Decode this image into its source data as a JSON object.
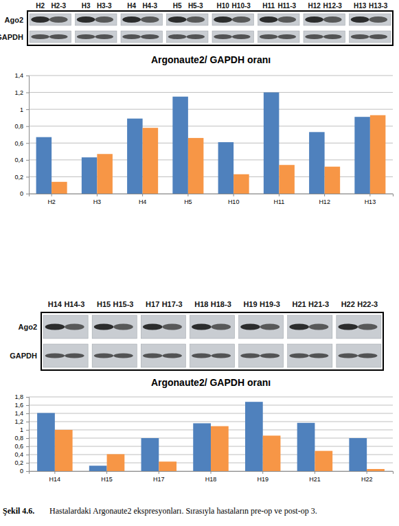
{
  "chart_data": [
    {
      "type": "bar",
      "title": "Argonaute2/ GAPDH oranı",
      "categories": [
        "H2",
        "H3",
        "H4",
        "H5",
        "H10",
        "H11",
        "H12",
        "H13"
      ],
      "series": [
        {
          "color": "#4f81bd",
          "values": [
            0.67,
            0.43,
            0.89,
            1.15,
            0.61,
            1.2,
            0.73,
            0.91
          ]
        },
        {
          "color": "#f79646",
          "values": [
            0.14,
            0.47,
            0.78,
            0.66,
            0.23,
            0.34,
            0.32,
            0.93
          ]
        }
      ],
      "ylim": [
        0,
        1.4
      ],
      "yticks": [
        0,
        {
          "value": 0.2,
          "label": "0,2"
        },
        {
          "value": 0.4,
          "label": "0,4"
        },
        {
          "value": 0.6,
          "label": "0,6"
        },
        {
          "value": 0.8,
          "label": "0,8"
        },
        1,
        {
          "value": 1.2,
          "label": "1,2"
        },
        {
          "value": 1.4,
          "label": "1,4"
        }
      ],
      "grid": true
    },
    {
      "type": "bar",
      "title": "Argonaute2/ GAPDH oranı",
      "categories": [
        "H14",
        "H15",
        "H17",
        "H18",
        "H19",
        "H21",
        "H22"
      ],
      "series": [
        {
          "color": "#4f81bd",
          "values": [
            1.41,
            0.13,
            0.8,
            1.16,
            1.68,
            1.17,
            0.8
          ]
        },
        {
          "color": "#f79646",
          "values": [
            1.0,
            0.41,
            0.23,
            1.09,
            0.86,
            0.49,
            0.05
          ]
        }
      ],
      "ylim": [
        0,
        1.8
      ],
      "yticks": [
        0,
        {
          "value": 0.2,
          "label": "0,2"
        },
        {
          "value": 0.4,
          "label": "0,4"
        },
        {
          "value": 0.6,
          "label": "0,6"
        },
        {
          "value": 0.8,
          "label": "0,8"
        },
        1,
        {
          "value": 1.2,
          "label": "1,2"
        },
        {
          "value": 1.4,
          "label": "1,4"
        },
        {
          "value": 1.6,
          "label": "1,6"
        },
        {
          "value": 1.8,
          "label": "1,8"
        }
      ],
      "grid": true
    }
  ],
  "blots": [
    {
      "lanes": [
        "H2",
        "H2-3",
        "H3",
        "H3-3",
        "H4",
        "H4-3",
        "H5",
        "H5-3",
        "H10",
        "H10-3",
        "H11",
        "H11-3",
        "H12",
        "H12-3",
        "H13",
        "H13-3"
      ],
      "rows": [
        "Ago2",
        "GAPDH"
      ]
    },
    {
      "lanes": [
        "H14",
        "H14-3",
        "H15",
        "H15-3",
        "H17",
        "H17-3",
        "H18",
        "H18-3",
        "H19",
        "H19-3",
        "H21",
        "H21-3",
        "H22",
        "H22-3"
      ],
      "rows": [
        "Ago2",
        "GAPDH"
      ]
    }
  ],
  "caption": [
    "Şekil 4.6.",
    "Hastalardaki Argonaute2 ekspresyonları. Sırasıyla hastaların pre-op ve post-op 3."
  ]
}
